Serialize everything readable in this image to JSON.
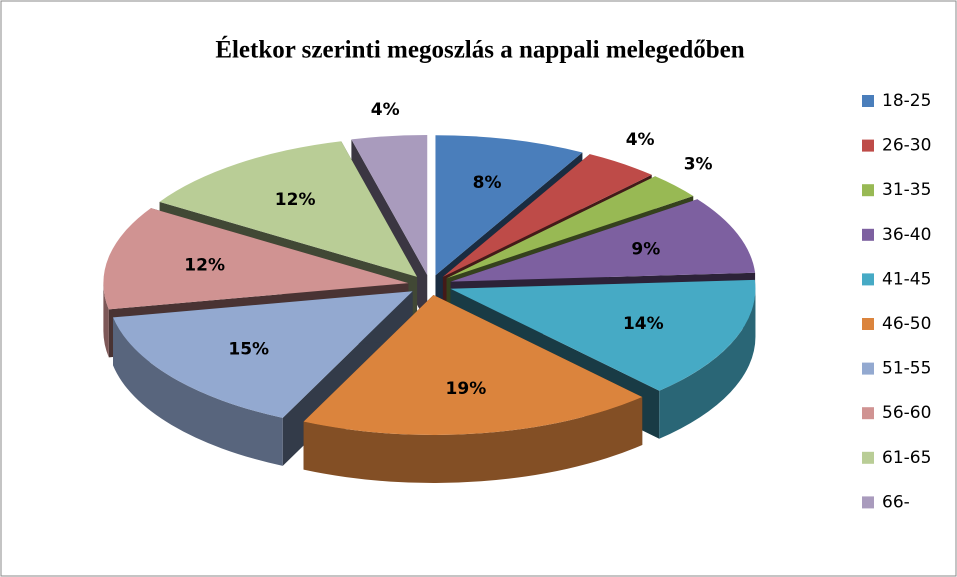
{
  "chart_data": {
    "type": "pie",
    "title": "Életkor szerinti megoszlás a nappali melegedőben",
    "categories": [
      "18-25",
      "26-30",
      "31-35",
      "36-40",
      "41-45",
      "46-50",
      "51-55",
      "56-60",
      "61-65",
      "66-"
    ],
    "values": [
      8,
      4,
      3,
      9,
      14,
      19,
      15,
      12,
      12,
      4
    ],
    "value_labels": [
      "8%",
      "4%",
      "3%",
      "9%",
      "14%",
      "19%",
      "15%",
      "12%",
      "12%",
      "4%"
    ],
    "colors": [
      "#4a7ebb",
      "#be4b48",
      "#98b954",
      "#7d60a0",
      "#46aac5",
      "#db843d",
      "#93a9d0",
      "#d09392",
      "#b9cd96",
      "#a99bbd"
    ],
    "legend": "right"
  }
}
